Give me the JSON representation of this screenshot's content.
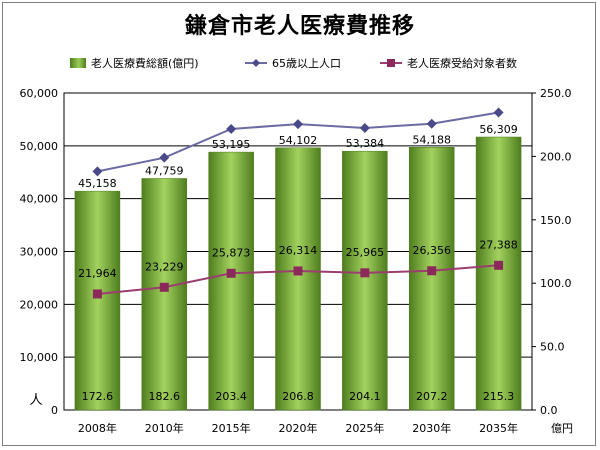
{
  "chart_data": {
    "type": "bar",
    "title": "鎌倉市老人医療費推移",
    "categories": [
      "2008年",
      "2010年",
      "2015年",
      "2020年",
      "2025年",
      "2030年",
      "2035年"
    ],
    "series": [
      {
        "name": "老人医療費総額(億円)",
        "type": "bar",
        "axis": "right",
        "values": [
          172.6,
          182.6,
          203.4,
          206.8,
          204.1,
          207.2,
          215.3
        ],
        "color": "#7cb342"
      },
      {
        "name": "65歳以上人口",
        "type": "line",
        "axis": "left",
        "values": [
          45158,
          47759,
          53195,
          54102,
          53384,
          54188,
          56309
        ],
        "color": "#6b6ba3"
      },
      {
        "name": "老人医療受給対象者数",
        "type": "line",
        "axis": "left",
        "values": [
          21964,
          23229,
          25873,
          26314,
          25965,
          26356,
          27388
        ],
        "color": "#9b3d6e"
      }
    ],
    "left_axis": {
      "label": "人",
      "min": 0,
      "max": 60000,
      "ticks": [
        "0",
        "10,000",
        "20,000",
        "30,000",
        "40,000",
        "50,000",
        "60,000"
      ]
    },
    "right_axis": {
      "label": "億円",
      "min": 0,
      "max": 250,
      "ticks": [
        "0.0",
        "50.0",
        "100.0",
        "150.0",
        "200.0",
        "250.0"
      ]
    },
    "population_labels": [
      "45,158",
      "47,759",
      "53,195",
      "54,102",
      "53,384",
      "54,188",
      "56,309"
    ],
    "recipient_labels": [
      "21,964",
      "23,229",
      "25,873",
      "26,314",
      "25,965",
      "26,356",
      "27,388"
    ],
    "bar_labels": [
      "172.6",
      "182.6",
      "203.4",
      "206.8",
      "204.1",
      "207.2",
      "215.3"
    ],
    "grid": true,
    "legend_position": "top"
  }
}
